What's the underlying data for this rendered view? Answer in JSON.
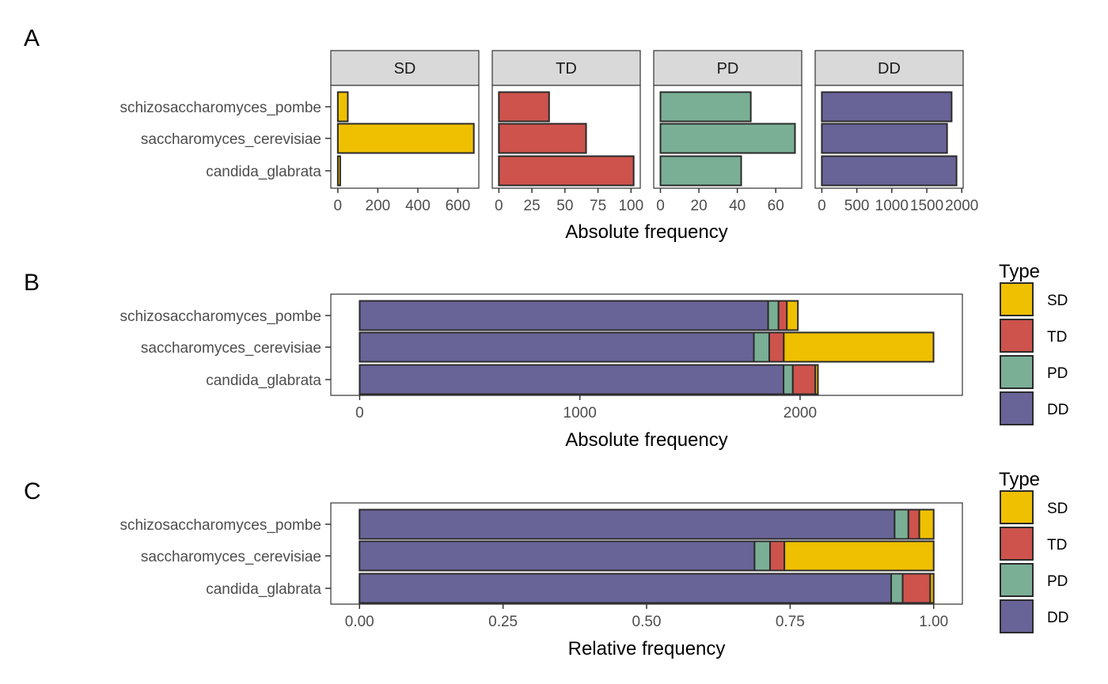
{
  "panel_letters": [
    "A",
    "B",
    "C"
  ],
  "colors": {
    "SD": "#EFC000",
    "TD": "#CD534C",
    "PD": "#7AAF96",
    "DD": "#686498"
  },
  "legend": {
    "title": "Type",
    "items": [
      {
        "label": "SD",
        "color": "#EFC000"
      },
      {
        "label": "TD",
        "color": "#CD534C"
      },
      {
        "label": "PD",
        "color": "#7AAF96"
      },
      {
        "label": "DD",
        "color": "#686498"
      }
    ]
  },
  "chart_data": [
    {
      "panel": "A",
      "type": "bar",
      "orientation": "horizontal",
      "faceted": true,
      "xlabel": "Absolute frequency",
      "ylabel": "",
      "categories": [
        "schizosaccharomyces_pombe",
        "saccharomyces_cerevisiae",
        "candida_glabrata"
      ],
      "facets": [
        {
          "name": "SD",
          "color": "#EFC000",
          "values": [
            50,
            680,
            12
          ],
          "xlim": [
            -35,
            705
          ],
          "ticks": [
            0,
            200,
            400,
            600
          ],
          "tick_labels": [
            "0",
            "200",
            "400",
            "600"
          ]
        },
        {
          "name": "TD",
          "color": "#CD534C",
          "values": [
            38,
            66,
            102
          ],
          "xlim": [
            -5,
            107
          ],
          "ticks": [
            0,
            25,
            50,
            75,
            100
          ],
          "tick_labels": [
            "0",
            "25",
            "50",
            "75",
            "100"
          ]
        },
        {
          "name": "PD",
          "color": "#7AAF96",
          "values": [
            47,
            70,
            42
          ],
          "xlim": [
            -3.5,
            73.5
          ],
          "ticks": [
            0,
            20,
            40,
            60
          ],
          "tick_labels": [
            "0",
            "20",
            "40",
            "60"
          ]
        },
        {
          "name": "DD",
          "color": "#686498",
          "values": [
            1855,
            1790,
            1925
          ],
          "xlim": [
            -95,
            2020
          ],
          "ticks": [
            0,
            500,
            1000,
            1500,
            2000
          ],
          "tick_labels": [
            "0",
            "500",
            "1000",
            "1500",
            "2000"
          ]
        }
      ]
    },
    {
      "panel": "B",
      "type": "bar",
      "orientation": "horizontal",
      "stacked": true,
      "xlabel": "Absolute frequency",
      "ylabel": "",
      "categories": [
        "schizosaccharomyces_pombe",
        "saccharomyces_cerevisiae",
        "candida_glabrata"
      ],
      "stack_order": [
        "DD",
        "PD",
        "TD",
        "SD"
      ],
      "series": [
        {
          "name": "SD",
          "values": [
            50,
            680,
            12
          ]
        },
        {
          "name": "TD",
          "values": [
            38,
            66,
            102
          ]
        },
        {
          "name": "PD",
          "values": [
            47,
            70,
            42
          ]
        },
        {
          "name": "DD",
          "values": [
            1855,
            1790,
            1925
          ]
        }
      ],
      "xlim": [
        -131,
        2737
      ],
      "ticks": [
        0,
        1000,
        2000
      ],
      "tick_labels": [
        "0",
        "1000",
        "2000"
      ]
    },
    {
      "panel": "C",
      "type": "bar",
      "orientation": "horizontal",
      "stacked": true,
      "xlabel": "Relative frequency",
      "ylabel": "",
      "categories": [
        "schizosaccharomyces_pombe",
        "saccharomyces_cerevisiae",
        "candida_glabrata"
      ],
      "stack_order": [
        "DD",
        "PD",
        "TD",
        "SD"
      ],
      "series": [
        {
          "name": "SD",
          "values": [
            0.025,
            0.26,
            0.006
          ]
        },
        {
          "name": "TD",
          "values": [
            0.019,
            0.025,
            0.048
          ]
        },
        {
          "name": "PD",
          "values": [
            0.024,
            0.027,
            0.02
          ]
        },
        {
          "name": "DD",
          "values": [
            0.932,
            0.688,
            0.926
          ]
        }
      ],
      "xlim": [
        -0.05,
        1.05
      ],
      "ticks": [
        0,
        0.25,
        0.5,
        0.75,
        1
      ],
      "tick_labels": [
        "0.00",
        "0.25",
        "0.50",
        "0.75",
        "1.00"
      ]
    }
  ]
}
